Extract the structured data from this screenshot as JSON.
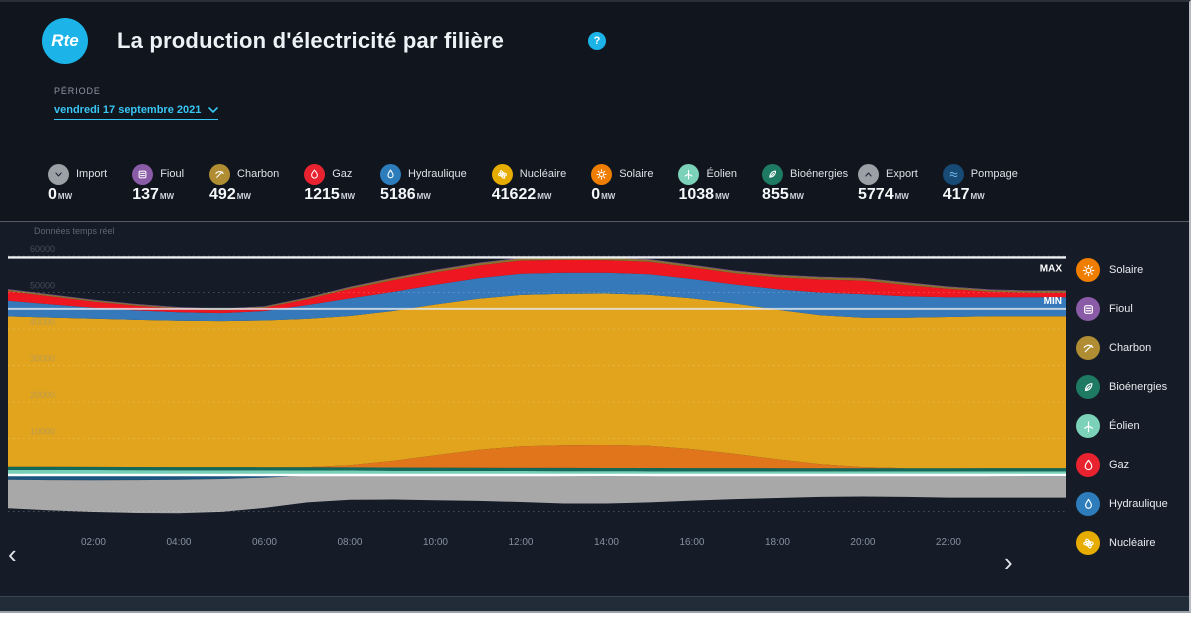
{
  "header": {
    "logo": "Rte",
    "title": "La production d'électricité par filière",
    "help_text": "?"
  },
  "period": {
    "label": "PÉRIODE",
    "value": "vendredi 17 septembre 2021"
  },
  "realtime_note": "Données temps réel",
  "nav": {
    "prev": "‹",
    "next": "›"
  },
  "metrics": [
    {
      "icon": "import-arrow-icon",
      "label": "Import",
      "value": "0",
      "unit": "MW",
      "color": "#9aa0a6",
      "glyph_color": "#1d2531"
    },
    {
      "icon": "fioul-icon",
      "label": "Fioul",
      "value": "137",
      "unit": "MW",
      "color": "#8a5ba6"
    },
    {
      "icon": "charbon-icon",
      "label": "Charbon",
      "value": "492",
      "unit": "MW",
      "color": "#b08c33"
    },
    {
      "icon": "gaz-icon",
      "label": "Gaz",
      "value": "1215",
      "unit": "MW",
      "color": "#e8232f"
    },
    {
      "icon": "hydraulique-icon",
      "label": "Hydraulique",
      "value": "5186",
      "unit": "MW",
      "color": "#2d7dbd"
    },
    {
      "icon": "nucleaire-icon",
      "label": "Nucléaire",
      "value": "41622",
      "unit": "MW",
      "color": "#e7ac00"
    },
    {
      "icon": "solaire-icon",
      "label": "Solaire",
      "value": "0",
      "unit": "MW",
      "color": "#ef7d00"
    },
    {
      "icon": "eolien-icon",
      "label": "Éolien",
      "value": "1038",
      "unit": "MW",
      "color": "#7cd2b8"
    },
    {
      "icon": "bioenergies-icon",
      "label": "Bioénergies",
      "value": "855",
      "unit": "MW",
      "color": "#1e7a63"
    }
  ],
  "metrics_secondary": [
    {
      "icon": "export-arrow-icon",
      "label": "Export",
      "value": "5774",
      "unit": "MW",
      "color": "#9aa0a6",
      "glyph_color": "#1d2531"
    },
    {
      "icon": "pompage-icon",
      "label": "Pompage",
      "value": "417",
      "unit": "MW",
      "color": "#174a74",
      "glyph_color": "#6db5e8"
    }
  ],
  "legend": [
    {
      "icon": "solaire-icon",
      "label": "Solaire",
      "color": "#ef7d00"
    },
    {
      "icon": "fioul-icon",
      "label": "Fioul",
      "color": "#8a5ba6"
    },
    {
      "icon": "charbon-icon",
      "label": "Charbon",
      "color": "#b08c33"
    },
    {
      "icon": "bioenergies-icon",
      "label": "Bioénergies",
      "color": "#1e7a63"
    },
    {
      "icon": "eolien-icon",
      "label": "Éolien",
      "color": "#7cd2b8"
    },
    {
      "icon": "gaz-icon",
      "label": "Gaz",
      "color": "#e8232f"
    },
    {
      "icon": "hydraulique-icon",
      "label": "Hydraulique",
      "color": "#2d7dbd"
    },
    {
      "icon": "nucleaire-icon",
      "label": "Nucléaire",
      "color": "#e7ac00"
    }
  ],
  "chart_data": {
    "type": "area",
    "title": "La production d'électricité par filière",
    "date": "vendredi 17 septembre 2021",
    "y_unit": "MW",
    "ylim": [
      -10000,
      60000
    ],
    "grid_step": 10000,
    "grid": "dotted",
    "legend_position": "right",
    "max_line_mw": 59600,
    "min_line_mw": 45500,
    "max_label": "MAX",
    "min_label": "MIN",
    "x_hours": [
      0,
      1,
      2,
      3,
      4,
      5,
      6,
      7,
      8,
      9,
      10,
      11,
      12,
      13,
      14,
      15,
      16,
      17,
      18,
      19,
      20,
      21,
      22,
      23,
      24,
      24.75
    ],
    "x_ticks": [
      {
        "h": 2,
        "label": "02:00"
      },
      {
        "h": 4,
        "label": "04:00"
      },
      {
        "h": 6,
        "label": "06:00"
      },
      {
        "h": 8,
        "label": "08:00"
      },
      {
        "h": 10,
        "label": "10:00"
      },
      {
        "h": 12,
        "label": "12:00"
      },
      {
        "h": 14,
        "label": "14:00"
      },
      {
        "h": 16,
        "label": "16:00"
      },
      {
        "h": 18,
        "label": "18:00"
      },
      {
        "h": 20,
        "label": "20:00"
      },
      {
        "h": 22,
        "label": "22:00"
      }
    ],
    "series": [
      {
        "name": "Éolien",
        "color": "#79d0b8",
        "values": [
          1400,
          1380,
          1360,
          1340,
          1320,
          1300,
          1280,
          1250,
          1220,
          1190,
          1160,
          1130,
          1100,
          1080,
          1060,
          1050,
          1040,
          1030,
          1020,
          1010,
          1000,
          1010,
          1020,
          1030,
          1038,
          1038
        ]
      },
      {
        "name": "Bioénergies",
        "color": "#12695a",
        "values": [
          855,
          855,
          855,
          855,
          855,
          855,
          855,
          855,
          855,
          855,
          855,
          855,
          855,
          855,
          855,
          855,
          855,
          855,
          855,
          855,
          855,
          855,
          855,
          855,
          855,
          855
        ]
      },
      {
        "name": "Solaire",
        "color": "#e0751c",
        "values": [
          0,
          0,
          0,
          0,
          0,
          0,
          0,
          50,
          600,
          1800,
          3400,
          4900,
          5900,
          6200,
          6300,
          6100,
          5200,
          3900,
          2400,
          1100,
          300,
          0,
          0,
          0,
          0,
          0
        ]
      },
      {
        "name": "Nucléaire",
        "color": "#e1a41c",
        "values": [
          41200,
          40900,
          40600,
          40300,
          40100,
          40000,
          40200,
          40600,
          40900,
          41100,
          41300,
          41400,
          41500,
          41500,
          41500,
          41400,
          41300,
          41200,
          41000,
          40800,
          40900,
          41200,
          41400,
          41600,
          41622,
          41622
        ]
      },
      {
        "name": "Hydraulique",
        "color": "#3579bb",
        "values": [
          4300,
          3600,
          3000,
          2600,
          2300,
          2200,
          2600,
          3800,
          4800,
          5200,
          5400,
          5600,
          5800,
          5800,
          5700,
          5600,
          5300,
          5200,
          5600,
          6200,
          6500,
          5900,
          5400,
          5200,
          5186,
          5186
        ]
      },
      {
        "name": "Gaz",
        "color": "#ee1620",
        "values": [
          2600,
          2200,
          1700,
          1300,
          1000,
          800,
          900,
          1600,
          2600,
          3200,
          3400,
          3500,
          3600,
          3500,
          3450,
          3400,
          3200,
          3100,
          3300,
          3600,
          3700,
          3100,
          2300,
          1500,
          1215,
          1215
        ]
      },
      {
        "name": "Charbon",
        "color": "#8a7030",
        "values": [
          450,
          420,
          380,
          330,
          300,
          290,
          300,
          380,
          480,
          560,
          600,
          620,
          630,
          640,
          630,
          610,
          590,
          570,
          580,
          600,
          610,
          580,
          540,
          500,
          492,
          492
        ]
      },
      {
        "name": "Fioul",
        "color": "#8356a2",
        "values": [
          130,
          128,
          126,
          124,
          122,
          120,
          122,
          126,
          130,
          134,
          136,
          138,
          140,
          140,
          140,
          138,
          136,
          134,
          136,
          138,
          138,
          136,
          138,
          137,
          137,
          137
        ]
      }
    ],
    "negative_series": [
      {
        "name": "Pompage",
        "color": "#1c5480",
        "values": [
          1300,
          1400,
          1450,
          1400,
          1300,
          1100,
          700,
          200,
          0,
          0,
          0,
          0,
          100,
          300,
          400,
          300,
          100,
          0,
          0,
          0,
          0,
          0,
          100,
          300,
          417,
          417
        ]
      },
      {
        "name": "Export",
        "color": "#a8a8a8",
        "values": [
          7800,
          8300,
          8700,
          9000,
          9200,
          9000,
          8300,
          7300,
          6800,
          6700,
          6900,
          7100,
          7300,
          7500,
          7400,
          7200,
          6900,
          6600,
          6300,
          6000,
          5900,
          6000,
          6100,
          5900,
          5774,
          5774
        ]
      }
    ]
  }
}
